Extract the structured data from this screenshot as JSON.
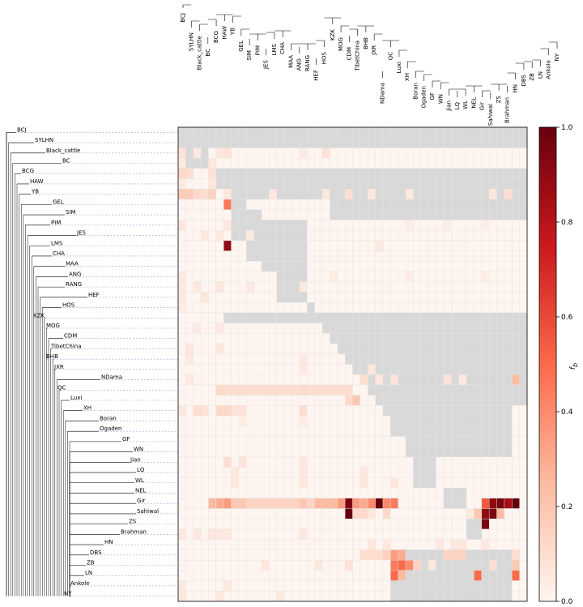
{
  "chart_data": {
    "type": "heatmap",
    "title": "",
    "colorbar_label": "f_b",
    "colorbar_range": [
      0.0,
      1.0
    ],
    "colorbar_ticks": [
      "0.0",
      "0.2",
      "0.4",
      "0.6",
      "0.8",
      "1.0"
    ],
    "colormap": [
      "#fff5f0",
      "#fcbba1",
      "#fb6a4a",
      "#cb181d",
      "#67000d"
    ],
    "masked_color": "#d8d8d8",
    "row_labels": [
      "BCJ",
      "SYLHN",
      "Black_cattle",
      "BC",
      "BCG",
      "HAW",
      "YB",
      "GEL",
      "SIM",
      "PIM",
      "JES",
      "LMS",
      "CHA",
      "MAA",
      "ANG",
      "RANG",
      "HEF",
      "HOS",
      "KZK",
      "MOG",
      "CDM",
      "TibetChina",
      "BHB",
      "JXR",
      "NDama",
      "QC",
      "Luxi",
      "XH",
      "Boran",
      "Ogaden",
      "GF",
      "WN",
      "Jian",
      "LQ",
      "WL",
      "NEL",
      "Gir",
      "Sahiwal",
      "ZS",
      "Brahman",
      "HN",
      "DBS",
      "ZB",
      "LN",
      "Ankole",
      "NY"
    ],
    "top_labels": [
      "BCJ",
      "SYLHN",
      "Black_cattle",
      "BC",
      "BCG",
      "HAW",
      "YB",
      "GEL",
      "SIM",
      "PIM",
      "JES",
      "LMS",
      "CHA",
      "MAA",
      "ANG",
      "RANG",
      "HEF",
      "HOS",
      "KZK",
      "MOG",
      "CDM",
      "TibetChina",
      "BHB",
      "JXR",
      "NDama",
      "QC",
      "Luxi",
      "XH",
      "Boran",
      "Ogaden",
      "GF",
      "WN",
      "Jian",
      "LQ",
      "WL",
      "NEL",
      "Gir",
      "Sahiwal",
      "ZS",
      "Brahman",
      "HN",
      "DBS",
      "ZB",
      "LN",
      "Ankole",
      "NY"
    ],
    "n_rows": 46,
    "n_cols": 46,
    "grey_pattern": [
      [
        0,
        46
      ],
      [
        4,
        46
      ],
      [
        5,
        46
      ],
      [
        6,
        46
      ],
      [
        7,
        46
      ],
      [
        8,
        46
      ],
      [
        9,
        46
      ],
      [
        10,
        46
      ],
      [
        11,
        46
      ],
      [
        12,
        46
      ],
      [
        13,
        46
      ],
      [
        14,
        46
      ],
      [
        15,
        46
      ],
      [
        16,
        46
      ],
      [
        17,
        46
      ],
      [
        18,
        46
      ],
      [
        19,
        46
      ],
      [
        20,
        46
      ],
      [
        21,
        46
      ],
      [
        22,
        46
      ],
      [
        23,
        46
      ],
      [
        24,
        46
      ]
    ],
    "grey_blocks": [
      {
        "r0": 0,
        "r1": 2,
        "c0": 0,
        "c1": 46
      },
      {
        "r0": 0,
        "r1": 4,
        "c0": 0,
        "c1": 4
      },
      {
        "r0": 4,
        "r1": 5,
        "c0": 4,
        "c1": 46
      },
      {
        "r0": 5,
        "r1": 6,
        "c0": 5,
        "c1": 46
      },
      {
        "r0": 6,
        "r1": 7,
        "c0": 6,
        "c1": 46
      },
      {
        "r0": 7,
        "r1": 9,
        "c0": 7,
        "c1": 9
      },
      {
        "r0": 7,
        "r1": 9,
        "c0": 20,
        "c1": 46
      },
      {
        "r0": 8,
        "r1": 11,
        "c0": 7,
        "c1": 11
      },
      {
        "r0": 9,
        "r1": 13,
        "c0": 9,
        "c1": 13
      },
      {
        "r0": 11,
        "r1": 14,
        "c0": 11,
        "c1": 14
      },
      {
        "r0": 13,
        "r1": 17,
        "c0": 13,
        "c1": 17
      },
      {
        "r0": 9,
        "r1": 11,
        "c0": 13,
        "c1": 17
      },
      {
        "r0": 11,
        "r1": 13,
        "c0": 14,
        "c1": 17
      },
      {
        "r0": 14,
        "r1": 17,
        "c0": 14,
        "c1": 17
      },
      {
        "r0": 17,
        "r1": 18,
        "c0": 17,
        "c1": 18
      },
      {
        "r0": 18,
        "r1": 19,
        "c0": 6,
        "c1": 46
      },
      {
        "r0": 19,
        "r1": 20,
        "c0": 19,
        "c1": 46
      },
      {
        "r0": 20,
        "r1": 21,
        "c0": 20,
        "c1": 46
      },
      {
        "r0": 21,
        "r1": 22,
        "c0": 21,
        "c1": 46
      },
      {
        "r0": 22,
        "r1": 23,
        "c0": 22,
        "c1": 46
      },
      {
        "r0": 23,
        "r1": 24,
        "c0": 23,
        "c1": 46
      },
      {
        "r0": 24,
        "r1": 25,
        "c0": 24,
        "c1": 46
      },
      {
        "r0": 25,
        "r1": 26,
        "c0": 25,
        "c1": 46
      },
      {
        "r0": 26,
        "r1": 27,
        "c0": 26,
        "c1": 46
      },
      {
        "r0": 27,
        "r1": 28,
        "c0": 27,
        "c1": 44
      },
      {
        "r0": 28,
        "r1": 30,
        "c0": 28,
        "c1": 44
      },
      {
        "r0": 30,
        "r1": 31,
        "c0": 30,
        "c1": 44
      },
      {
        "r0": 31,
        "r1": 32,
        "c0": 30,
        "c1": 44
      },
      {
        "r0": 32,
        "r1": 35,
        "c0": 31,
        "c1": 34
      },
      {
        "r0": 35,
        "r1": 37,
        "c0": 35,
        "c1": 38
      },
      {
        "r0": 37,
        "r1": 40,
        "c0": 38,
        "c1": 40
      },
      {
        "r0": 40,
        "r1": 41,
        "c0": 40,
        "c1": 41
      },
      {
        "r0": 41,
        "r1": 46,
        "c0": 28,
        "c1": 44
      }
    ],
    "heat_cells": [
      {
        "r": 2,
        "c": 0,
        "v": 0.08
      },
      {
        "r": 2,
        "c": 2,
        "v": 0.05
      },
      {
        "r": 2,
        "c": 5,
        "v": 0.06
      },
      {
        "r": 2,
        "c": 6,
        "v": 0.08
      },
      {
        "r": 2,
        "c": 16,
        "v": 0.05
      },
      {
        "r": 2,
        "c": 19,
        "v": 0.08
      },
      {
        "r": 3,
        "c": 0,
        "v": 0.05
      },
      {
        "r": 3,
        "c": 4,
        "v": 0.06
      },
      {
        "r": 4,
        "c": 0,
        "v": 0.12
      },
      {
        "r": 4,
        "c": 1,
        "v": 0.1
      },
      {
        "r": 4,
        "c": 4,
        "v": 0.08
      },
      {
        "r": 5,
        "c": 0,
        "v": 0.05
      },
      {
        "r": 5,
        "c": 4,
        "v": 0.06
      },
      {
        "r": 6,
        "c": 0,
        "v": 0.18
      },
      {
        "r": 6,
        "c": 1,
        "v": 0.18
      },
      {
        "r": 6,
        "c": 2,
        "v": 0.12
      },
      {
        "r": 6,
        "c": 3,
        "v": 0.1
      },
      {
        "r": 6,
        "c": 4,
        "v": 0.15
      },
      {
        "r": 6,
        "c": 6,
        "v": 0.06
      },
      {
        "r": 6,
        "c": 12,
        "v": 0.06
      },
      {
        "r": 6,
        "c": 19,
        "v": 0.06
      },
      {
        "r": 6,
        "c": 22,
        "v": 0.1
      },
      {
        "r": 6,
        "c": 25,
        "v": 0.06
      },
      {
        "r": 6,
        "c": 30,
        "v": 0.06
      },
      {
        "r": 6,
        "c": 41,
        "v": 0.06
      },
      {
        "r": 6,
        "c": 43,
        "v": 0.1
      },
      {
        "r": 7,
        "c": 6,
        "v": 0.45
      },
      {
        "r": 9,
        "c": 0,
        "v": 0.06
      },
      {
        "r": 9,
        "c": 6,
        "v": 0.06
      },
      {
        "r": 9,
        "c": 30,
        "v": 0.04
      },
      {
        "r": 9,
        "c": 35,
        "v": 0.04
      },
      {
        "r": 9,
        "c": 40,
        "v": 0.04
      },
      {
        "r": 10,
        "c": 3,
        "v": 0.06
      },
      {
        "r": 10,
        "c": 5,
        "v": 0.06
      },
      {
        "r": 10,
        "c": 9,
        "v": 0.05
      },
      {
        "r": 11,
        "c": 6,
        "v": 0.9
      },
      {
        "r": 11,
        "c": 26,
        "v": 0.05
      },
      {
        "r": 14,
        "c": 0,
        "v": 0.05
      },
      {
        "r": 14,
        "c": 20,
        "v": 0.04
      },
      {
        "r": 14,
        "c": 30,
        "v": 0.04
      },
      {
        "r": 14,
        "c": 40,
        "v": 0.04
      },
      {
        "r": 15,
        "c": 0,
        "v": 0.05
      },
      {
        "r": 15,
        "c": 2,
        "v": 0.06
      },
      {
        "r": 15,
        "c": 5,
        "v": 0.06
      },
      {
        "r": 15,
        "c": 9,
        "v": 0.05
      },
      {
        "r": 15,
        "c": 16,
        "v": 0.06
      },
      {
        "r": 16,
        "c": 0,
        "v": 0.05
      },
      {
        "r": 16,
        "c": 3,
        "v": 0.06
      },
      {
        "r": 17,
        "c": 0,
        "v": 0.04
      },
      {
        "r": 19,
        "c": 2,
        "v": 0.05
      },
      {
        "r": 19,
        "c": 5,
        "v": 0.05
      },
      {
        "r": 21,
        "c": 1,
        "v": 0.06
      },
      {
        "r": 21,
        "c": 5,
        "v": 0.06
      },
      {
        "r": 22,
        "c": 1,
        "v": 0.05
      },
      {
        "r": 22,
        "c": 16,
        "v": 0.05
      },
      {
        "r": 23,
        "c": 16,
        "v": 0.05
      },
      {
        "r": 23,
        "c": 25,
        "v": 0.06
      },
      {
        "r": 24,
        "c": 1,
        "v": 0.05
      },
      {
        "r": 24,
        "c": 24,
        "v": 0.1
      },
      {
        "r": 24,
        "c": 26,
        "v": 0.06
      },
      {
        "r": 24,
        "c": 28,
        "v": 0.08
      },
      {
        "r": 24,
        "c": 35,
        "v": 0.08
      },
      {
        "r": 24,
        "c": 37,
        "v": 0.06
      },
      {
        "r": 24,
        "c": 44,
        "v": 0.25
      },
      {
        "r": 25,
        "c": 5,
        "v": 0.12
      },
      {
        "r": 25,
        "c": 6,
        "v": 0.1
      },
      {
        "r": 25,
        "c": 7,
        "v": 0.1
      },
      {
        "r": 25,
        "c": 8,
        "v": 0.1
      },
      {
        "r": 25,
        "c": 9,
        "v": 0.1
      },
      {
        "r": 25,
        "c": 10,
        "v": 0.1
      },
      {
        "r": 25,
        "c": 11,
        "v": 0.1
      },
      {
        "r": 25,
        "c": 12,
        "v": 0.1
      },
      {
        "r": 25,
        "c": 13,
        "v": 0.1
      },
      {
        "r": 25,
        "c": 14,
        "v": 0.1
      },
      {
        "r": 25,
        "c": 15,
        "v": 0.1
      },
      {
        "r": 25,
        "c": 16,
        "v": 0.12
      },
      {
        "r": 25,
        "c": 17,
        "v": 0.1
      },
      {
        "r": 25,
        "c": 18,
        "v": 0.1
      },
      {
        "r": 25,
        "c": 19,
        "v": 0.1
      },
      {
        "r": 25,
        "c": 20,
        "v": 0.1
      },
      {
        "r": 25,
        "c": 21,
        "v": 0.1
      },
      {
        "r": 25,
        "c": 22,
        "v": 0.1
      },
      {
        "r": 26,
        "c": 22,
        "v": 0.12
      },
      {
        "r": 26,
        "c": 23,
        "v": 0.2
      },
      {
        "r": 27,
        "c": 0,
        "v": 0.06
      },
      {
        "r": 27,
        "c": 2,
        "v": 0.1
      },
      {
        "r": 27,
        "c": 3,
        "v": 0.08
      },
      {
        "r": 27,
        "c": 5,
        "v": 0.12
      },
      {
        "r": 27,
        "c": 6,
        "v": 0.12
      },
      {
        "r": 27,
        "c": 7,
        "v": 0.08
      },
      {
        "r": 27,
        "c": 8,
        "v": 0.08
      },
      {
        "r": 27,
        "c": 16,
        "v": 0.1
      },
      {
        "r": 28,
        "c": 8,
        "v": 0.04
      },
      {
        "r": 28,
        "c": 16,
        "v": 0.04
      },
      {
        "r": 32,
        "c": 6,
        "v": 0.1
      },
      {
        "r": 32,
        "c": 8,
        "v": 0.08
      },
      {
        "r": 32,
        "c": 16,
        "v": 0.06
      },
      {
        "r": 33,
        "c": 7,
        "v": 0.06
      },
      {
        "r": 33,
        "c": 16,
        "v": 0.06
      },
      {
        "r": 33,
        "c": 24,
        "v": 0.06
      },
      {
        "r": 34,
        "c": 7,
        "v": 0.06
      },
      {
        "r": 34,
        "c": 16,
        "v": 0.06
      },
      {
        "r": 34,
        "c": 24,
        "v": 0.06
      },
      {
        "r": 34,
        "c": 28,
        "v": 0.06
      },
      {
        "r": 36,
        "c": 4,
        "v": 0.25
      },
      {
        "r": 36,
        "c": 5,
        "v": 0.3
      },
      {
        "r": 36,
        "c": 6,
        "v": 0.35
      },
      {
        "r": 36,
        "c": 7,
        "v": 0.2
      },
      {
        "r": 36,
        "c": 8,
        "v": 0.2
      },
      {
        "r": 36,
        "c": 9,
        "v": 0.15
      },
      {
        "r": 36,
        "c": 10,
        "v": 0.15
      },
      {
        "r": 36,
        "c": 11,
        "v": 0.15
      },
      {
        "r": 36,
        "c": 12,
        "v": 0.15
      },
      {
        "r": 36,
        "c": 13,
        "v": 0.15
      },
      {
        "r": 36,
        "c": 14,
        "v": 0.15
      },
      {
        "r": 36,
        "c": 15,
        "v": 0.15
      },
      {
        "r": 36,
        "c": 16,
        "v": 0.2
      },
      {
        "r": 36,
        "c": 17,
        "v": 0.15
      },
      {
        "r": 36,
        "c": 18,
        "v": 0.25
      },
      {
        "r": 36,
        "c": 19,
        "v": 0.25
      },
      {
        "r": 36,
        "c": 20,
        "v": 0.25
      },
      {
        "r": 36,
        "c": 21,
        "v": 0.35
      },
      {
        "r": 36,
        "c": 22,
        "v": 0.95
      },
      {
        "r": 36,
        "c": 23,
        "v": 0.35
      },
      {
        "r": 36,
        "c": 24,
        "v": 0.3
      },
      {
        "r": 36,
        "c": 25,
        "v": 0.4
      },
      {
        "r": 36,
        "c": 26,
        "v": 1.0
      },
      {
        "r": 36,
        "c": 27,
        "v": 0.4
      },
      {
        "r": 36,
        "c": 28,
        "v": 0.45
      },
      {
        "r": 36,
        "c": 40,
        "v": 0.55
      },
      {
        "r": 36,
        "c": 41,
        "v": 0.9
      },
      {
        "r": 36,
        "c": 42,
        "v": 0.95
      },
      {
        "r": 36,
        "c": 43,
        "v": 0.85
      },
      {
        "r": 36,
        "c": 44,
        "v": 1.0
      },
      {
        "r": 37,
        "c": 22,
        "v": 1.0
      },
      {
        "r": 37,
        "c": 23,
        "v": 0.12
      },
      {
        "r": 37,
        "c": 24,
        "v": 0.12
      },
      {
        "r": 37,
        "c": 25,
        "v": 0.06
      },
      {
        "r": 37,
        "c": 27,
        "v": 0.12
      },
      {
        "r": 37,
        "c": 38,
        "v": 0.06
      },
      {
        "r": 37,
        "c": 39,
        "v": 0.2
      },
      {
        "r": 37,
        "c": 40,
        "v": 0.9
      },
      {
        "r": 37,
        "c": 41,
        "v": 0.95
      },
      {
        "r": 37,
        "c": 42,
        "v": 0.25
      },
      {
        "r": 38,
        "c": 40,
        "v": 0.95
      },
      {
        "r": 39,
        "c": 0,
        "v": 0.06
      },
      {
        "r": 39,
        "c": 2,
        "v": 0.06
      },
      {
        "r": 39,
        "c": 4,
        "v": 0.06
      },
      {
        "r": 39,
        "c": 5,
        "v": 0.06
      },
      {
        "r": 39,
        "c": 6,
        "v": 0.06
      },
      {
        "r": 39,
        "c": 16,
        "v": 0.06
      },
      {
        "r": 40,
        "c": 25,
        "v": 0.06
      },
      {
        "r": 40,
        "c": 27,
        "v": 0.06
      },
      {
        "r": 40,
        "c": 34,
        "v": 0.06
      },
      {
        "r": 40,
        "c": 36,
        "v": 0.06
      },
      {
        "r": 40,
        "c": 37,
        "v": 0.06
      },
      {
        "r": 40,
        "c": 40,
        "v": 0.06
      },
      {
        "r": 41,
        "c": 24,
        "v": 0.1
      },
      {
        "r": 41,
        "c": 25,
        "v": 0.1
      },
      {
        "r": 41,
        "c": 26,
        "v": 0.1
      },
      {
        "r": 41,
        "c": 27,
        "v": 0.15
      },
      {
        "r": 41,
        "c": 28,
        "v": 0.35
      },
      {
        "r": 41,
        "c": 29,
        "v": 0.3
      },
      {
        "r": 41,
        "c": 35,
        "v": 0.15
      },
      {
        "r": 41,
        "c": 36,
        "v": 0.15
      },
      {
        "r": 41,
        "c": 37,
        "v": 0.15
      },
      {
        "r": 41,
        "c": 44,
        "v": 0.1
      },
      {
        "r": 42,
        "c": 11,
        "v": 0.06
      },
      {
        "r": 42,
        "c": 18,
        "v": 0.06
      },
      {
        "r": 42,
        "c": 22,
        "v": 0.08
      },
      {
        "r": 42,
        "c": 28,
        "v": 0.45
      },
      {
        "r": 42,
        "c": 29,
        "v": 0.5
      },
      {
        "r": 42,
        "c": 30,
        "v": 0.4
      },
      {
        "r": 42,
        "c": 31,
        "v": 0.15
      },
      {
        "r": 42,
        "c": 33,
        "v": 0.06
      },
      {
        "r": 42,
        "c": 41,
        "v": 0.1
      },
      {
        "r": 42,
        "c": 44,
        "v": 0.2
      },
      {
        "r": 43,
        "c": 28,
        "v": 0.5
      },
      {
        "r": 43,
        "c": 29,
        "v": 0.25
      },
      {
        "r": 43,
        "c": 39,
        "v": 0.5
      },
      {
        "r": 43,
        "c": 44,
        "v": 0.5
      },
      {
        "r": 44,
        "c": 0,
        "v": 0.05
      },
      {
        "r": 44,
        "c": 6,
        "v": 0.06
      },
      {
        "r": 45,
        "c": 0,
        "v": 0.06
      },
      {
        "r": 45,
        "c": 5,
        "v": 0.06
      },
      {
        "r": 45,
        "c": 13,
        "v": 0.05
      }
    ]
  }
}
